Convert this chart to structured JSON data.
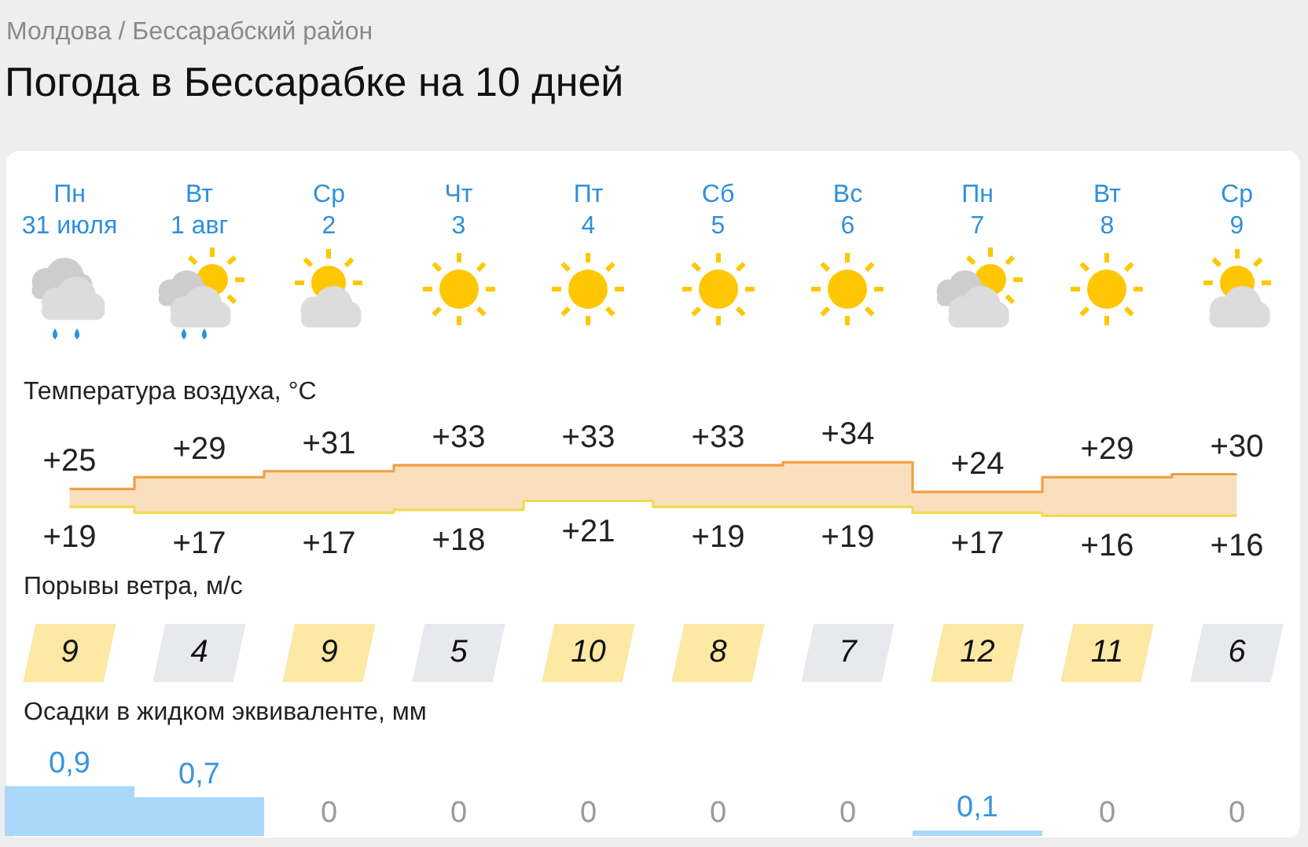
{
  "chart_data": [
    {
      "type": "step",
      "title": "Погода в Бессарабке на 10 дней",
      "subtitle": "Молдова / Бессарабский район",
      "ylabel": "Температура воздуха, °C",
      "categories": [
        "Пн 31 июля",
        "Вт 1 авг",
        "Ср 2",
        "Чт 3",
        "Пт 4",
        "Сб 5",
        "Вс 6",
        "Пн 7",
        "Вт 8",
        "Ср 9"
      ],
      "series": [
        {
          "color": "#f0a040",
          "values": [
            25,
            29,
            31,
            33,
            33,
            33,
            34,
            24,
            29,
            30
          ],
          "value_labels": [
            "+25",
            "+29",
            "+31",
            "+33",
            "+33",
            "+33",
            "+34",
            "+24",
            "+29",
            "+30"
          ],
          "lower": [
            19,
            17,
            17,
            18,
            21,
            19,
            19,
            17,
            16,
            16
          ],
          "upper": [
            25,
            29,
            31,
            33,
            33,
            33,
            34,
            24,
            29,
            30
          ]
        },
        {
          "color": "#eedb4f",
          "values": [
            19,
            17,
            17,
            18,
            21,
            19,
            19,
            17,
            16,
            16
          ],
          "value_labels": [
            "+19",
            "+17",
            "+17",
            "+18",
            "+21",
            "+19",
            "+19",
            "+17",
            "+16",
            "+16"
          ]
        }
      ],
      "tick_labels": "x"
    },
    {
      "type": "other",
      "ylabel": "Порывы ветра, м/с",
      "values": [
        9,
        4,
        9,
        5,
        10,
        8,
        7,
        12,
        11,
        6
      ],
      "colors": [
        "#fde8a4",
        "#e8e9ec",
        "#fde8a4",
        "#e8e9ec",
        "#fde8a4",
        "#fde8a4",
        "#e8e9ec",
        "#fde8a4",
        "#fde8a4",
        "#e8e9ec"
      ],
      "data_labels": true
    },
    {
      "type": "bar",
      "ylabel": "Осадки в жидком эквиваленте, мм",
      "categories": [
        null,
        null,
        null,
        null,
        null,
        null,
        null,
        null,
        null,
        null
      ],
      "values": [
        0.9,
        0.7,
        0,
        0,
        0,
        0,
        0,
        0.1,
        0,
        0
      ],
      "value_labels": [
        "0,9",
        "0,7",
        "0",
        "0",
        "0",
        "0",
        "0",
        "0,1",
        "0",
        "0"
      ],
      "color": "#a9d8fa",
      "tick_labels": false
    }
  ]
}
